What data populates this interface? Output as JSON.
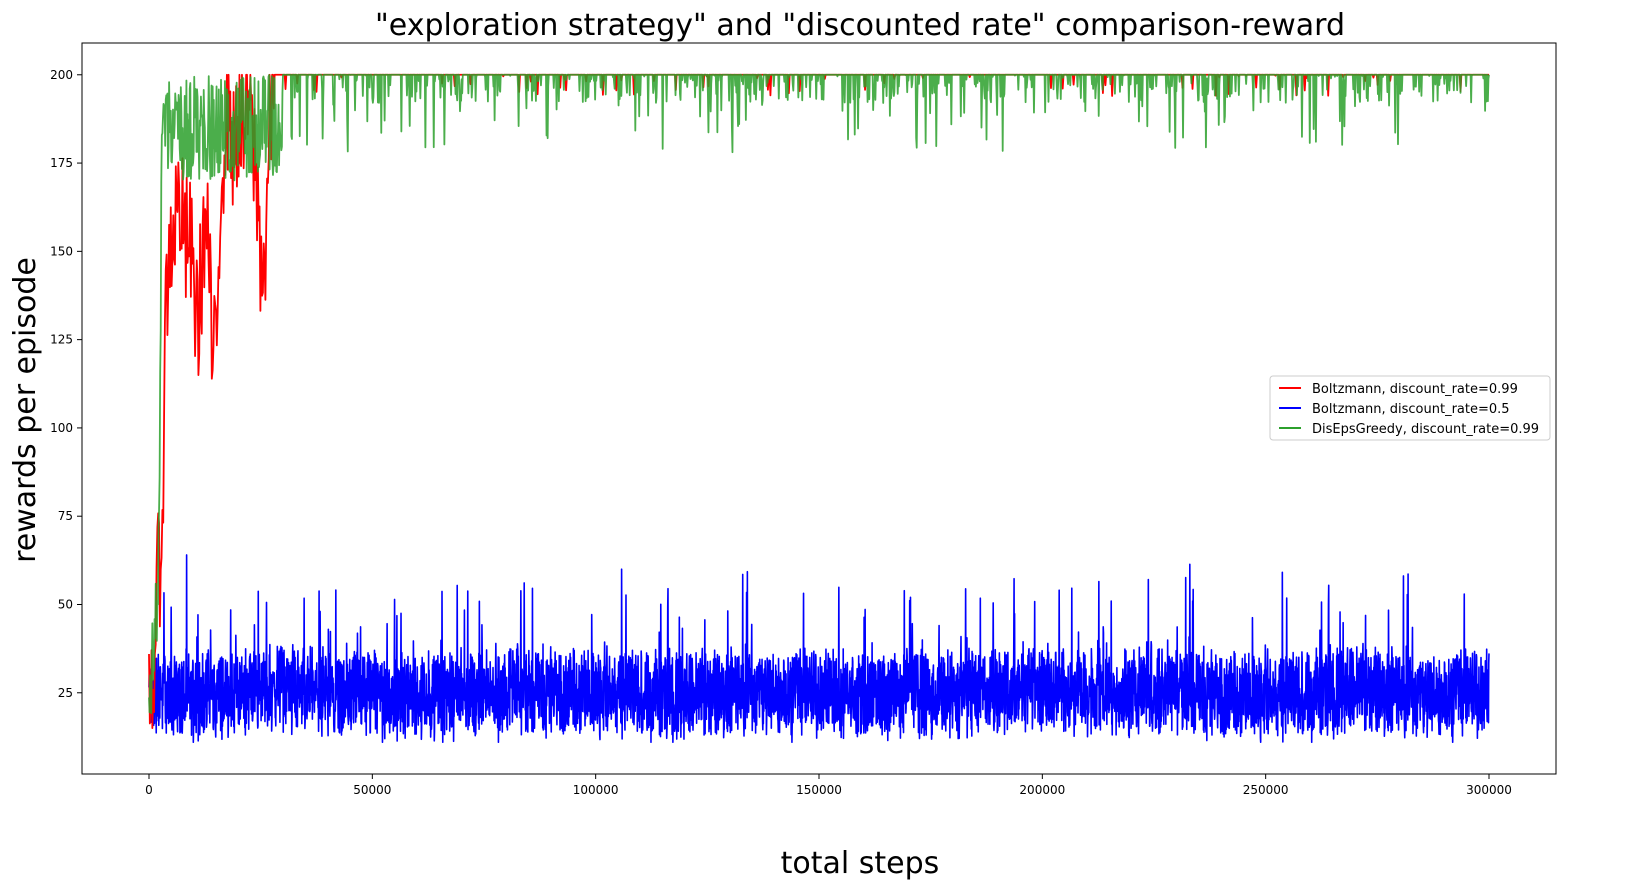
{
  "chart_data": {
    "type": "line",
    "title": "\"exploration strategy\" and \"discounted rate\" comparison-reward",
    "xlabel": "total steps",
    "ylabel": "rewards per episode",
    "xlim": [
      -15000,
      315000
    ],
    "ylim": [
      2,
      209
    ],
    "xticks": [
      0,
      50000,
      100000,
      150000,
      200000,
      250000,
      300000
    ],
    "xtick_labels": [
      "0",
      "50000",
      "100000",
      "150000",
      "200000",
      "250000",
      "300000"
    ],
    "yticks": [
      25,
      50,
      75,
      100,
      125,
      150,
      175,
      200
    ],
    "ytick_labels": [
      "25",
      "50",
      "75",
      "100",
      "125",
      "150",
      "175",
      "200"
    ],
    "grid": false,
    "legend_position": "center-right",
    "series": [
      {
        "name": "Boltzmann, discount_rate=0.99",
        "color": "#ff0000",
        "x": [
          0,
          1000,
          2000,
          3000,
          3500,
          4000,
          5000,
          6000,
          7000,
          8000,
          9000,
          10000,
          11000,
          12000,
          13000,
          14000,
          15000,
          15500,
          16000,
          17000,
          18000,
          19000,
          20000,
          21000,
          22000,
          23000,
          24000,
          25000,
          26000,
          27000,
          28000,
          30000,
          35000,
          40000,
          60000,
          72000,
          115000,
          155000,
          178000,
          200000,
          260000,
          300000
        ],
        "y": [
          25,
          30,
          55,
          75,
          120,
          140,
          155,
          160,
          165,
          150,
          155,
          140,
          130,
          150,
          160,
          125,
          115,
          140,
          170,
          185,
          195,
          175,
          190,
          180,
          195,
          185,
          170,
          150,
          145,
          185,
          200,
          200,
          200,
          200,
          198,
          199,
          198,
          199,
          197,
          200,
          199,
          200
        ]
      },
      {
        "name": "Boltzmann, discount_rate=0.5",
        "color": "#0000ff",
        "x": [
          0,
          15000,
          30000,
          45000,
          60000,
          75000,
          90000,
          105000,
          120000,
          135000,
          150000,
          165000,
          180000,
          195000,
          210000,
          225000,
          240000,
          255000,
          270000,
          285000,
          300000
        ],
        "y": [
          25,
          24,
          26,
          25,
          24,
          25,
          26,
          25,
          24,
          26,
          25,
          25,
          24,
          26,
          25,
          26,
          25,
          24,
          26,
          25,
          25
        ],
        "y_range": [
          11,
          69
        ]
      },
      {
        "name": "DisEpsGreedy, discount_rate=0.99",
        "color": "#2ca02c",
        "x": [
          0,
          1000,
          2000,
          2500,
          3000,
          4000,
          5000,
          6000,
          7000,
          8000,
          9000,
          10000,
          12000,
          14000,
          16000,
          18000,
          20000,
          25000,
          30000,
          40000,
          60000,
          75000,
          100000,
          150000,
          200000,
          250000,
          300000
        ],
        "y": [
          25,
          35,
          60,
          110,
          200,
          175,
          185,
          190,
          195,
          180,
          190,
          185,
          195,
          190,
          200,
          195,
          200,
          198,
          199,
          197,
          185,
          192,
          195,
          188,
          196,
          185,
          199
        ]
      }
    ]
  }
}
